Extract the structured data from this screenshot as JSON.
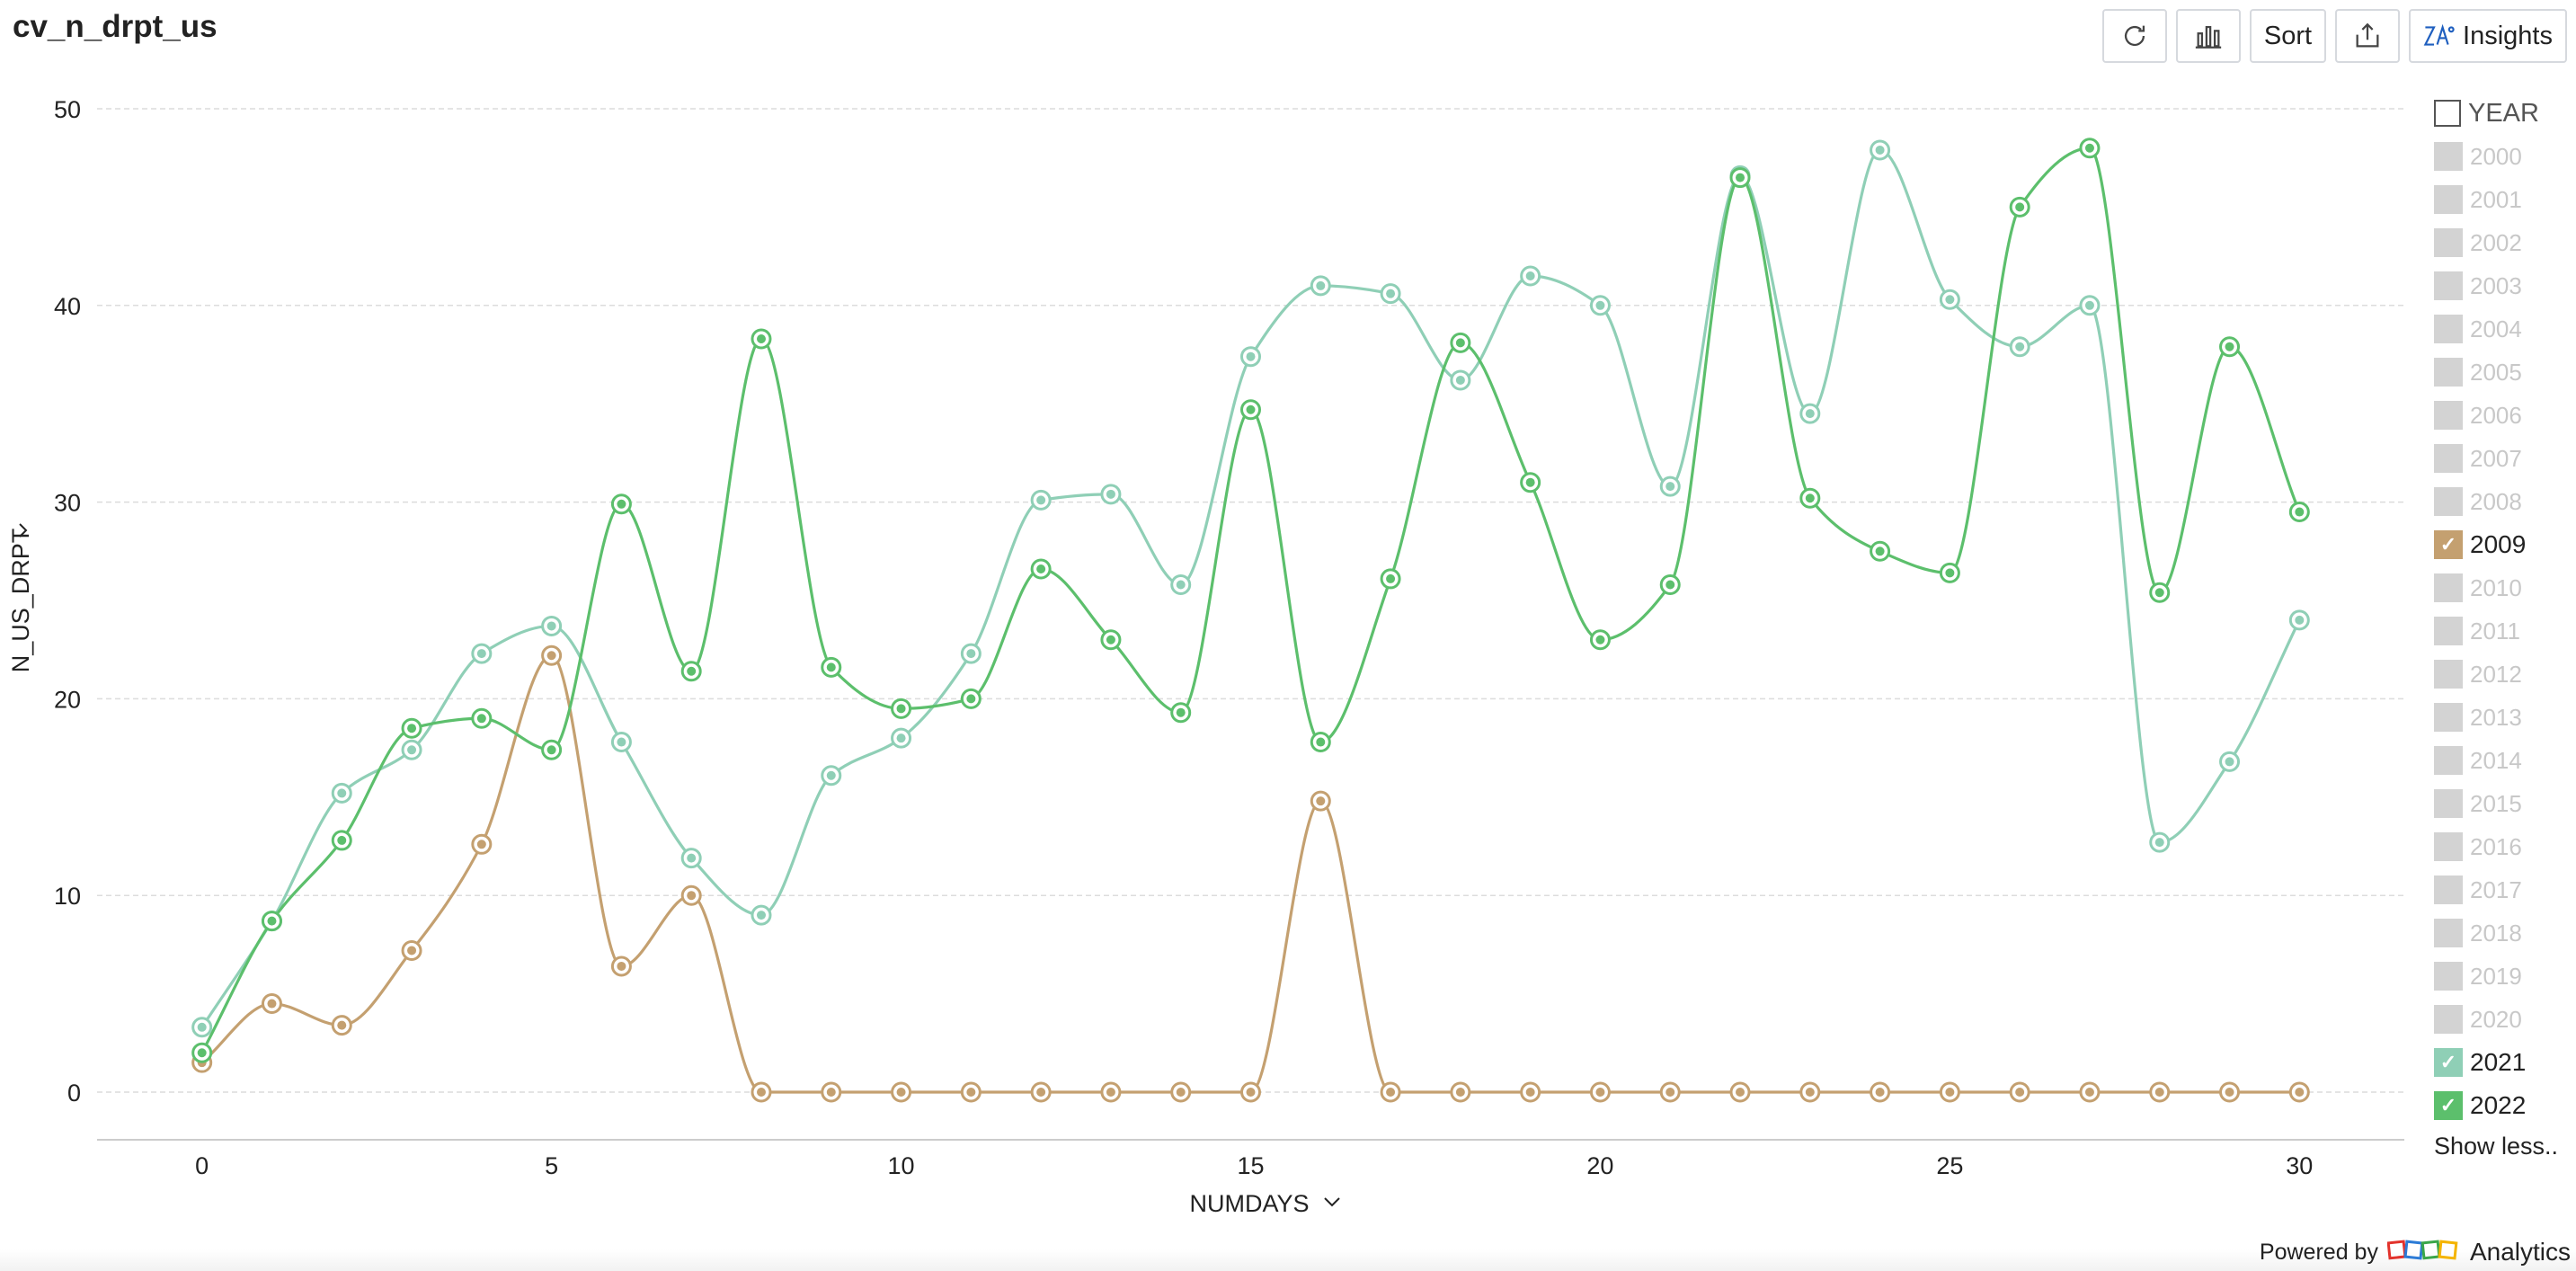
{
  "title": "cv_n_drpt_us",
  "toolbar": {
    "refresh_icon": "refresh-icon",
    "chart_type_icon": "bar-chart-icon",
    "sort_label": "Sort",
    "export_icon": "export-icon",
    "insights_label": "Insights",
    "insights_icon": "insights-icon"
  },
  "legend": {
    "title": "YEAR",
    "items": [
      {
        "label": "2000",
        "checked": false
      },
      {
        "label": "2001",
        "checked": false
      },
      {
        "label": "2002",
        "checked": false
      },
      {
        "label": "2003",
        "checked": false
      },
      {
        "label": "2004",
        "checked": false
      },
      {
        "label": "2005",
        "checked": false
      },
      {
        "label": "2006",
        "checked": false
      },
      {
        "label": "2007",
        "checked": false
      },
      {
        "label": "2008",
        "checked": false
      },
      {
        "label": "2009",
        "checked": true,
        "color": "#c4a070"
      },
      {
        "label": "2010",
        "checked": false
      },
      {
        "label": "2011",
        "checked": false
      },
      {
        "label": "2012",
        "checked": false
      },
      {
        "label": "2013",
        "checked": false
      },
      {
        "label": "2014",
        "checked": false
      },
      {
        "label": "2015",
        "checked": false
      },
      {
        "label": "2016",
        "checked": false
      },
      {
        "label": "2017",
        "checked": false
      },
      {
        "label": "2018",
        "checked": false
      },
      {
        "label": "2019",
        "checked": false
      },
      {
        "label": "2020",
        "checked": false
      },
      {
        "label": "2021",
        "checked": true,
        "color": "#8fcfb6"
      },
      {
        "label": "2022",
        "checked": true,
        "color": "#5cbf6c"
      }
    ],
    "show_less_label": "Show less.."
  },
  "footer": {
    "powered_by": "Powered by",
    "brand": "Analytics",
    "logo_colors": [
      "#e2322b",
      "#2c7bd6",
      "#3aa64a",
      "#f4b400"
    ]
  },
  "chart_data": {
    "type": "line",
    "xlabel": "NUMDAYS",
    "ylabel": "N_US_DRPT",
    "xlim": [
      -1.5,
      31.5
    ],
    "ylim": [
      0,
      50
    ],
    "xticks": [
      0,
      5,
      10,
      15,
      20,
      25,
      30
    ],
    "yticks": [
      0,
      10,
      20,
      30,
      40,
      50
    ],
    "grid": true,
    "legend_position": "right",
    "x": [
      0,
      1,
      2,
      3,
      4,
      5,
      6,
      7,
      8,
      9,
      10,
      11,
      12,
      13,
      14,
      15,
      16,
      17,
      18,
      19,
      20,
      21,
      22,
      23,
      24,
      25,
      26,
      27,
      28,
      29,
      30
    ],
    "series": [
      {
        "name": "2009",
        "color": "#c4a070",
        "values": [
          1.5,
          4.5,
          3.4,
          7.2,
          12.6,
          22.2,
          6.4,
          10.0,
          0,
          0,
          0,
          0,
          0,
          0,
          0,
          0,
          14.8,
          0,
          0,
          0,
          0,
          0,
          0,
          0,
          0,
          0,
          0,
          0,
          0,
          0,
          0
        ]
      },
      {
        "name": "2021",
        "color": "#8fcfb6",
        "values": [
          3.3,
          8.7,
          15.2,
          17.4,
          22.3,
          23.7,
          17.8,
          11.9,
          9.0,
          16.1,
          18.0,
          22.3,
          30.1,
          30.4,
          25.8,
          37.4,
          41.0,
          40.6,
          36.2,
          41.5,
          40.0,
          30.8,
          46.6,
          34.5,
          47.9,
          40.3,
          37.9,
          40.0,
          12.7,
          16.8,
          24.0
        ]
      },
      {
        "name": "2022",
        "color": "#5cbf6c",
        "values": [
          2.0,
          8.7,
          12.8,
          18.5,
          19.0,
          17.4,
          29.9,
          21.4,
          38.3,
          21.6,
          19.5,
          20.0,
          26.6,
          23.0,
          19.3,
          34.7,
          17.8,
          26.1,
          38.1,
          31.0,
          23.0,
          25.8,
          46.5,
          30.2,
          27.5,
          26.4,
          45.0,
          48.0,
          25.4,
          37.9,
          29.5
        ]
      }
    ]
  }
}
